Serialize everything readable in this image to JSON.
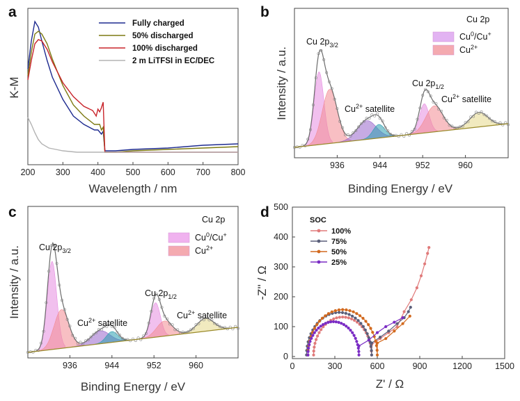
{
  "chart_data": [
    {
      "panel": "a",
      "type": "line",
      "xlabel": "Wavelength / nm",
      "ylabel": "K-M",
      "xlim": [
        200,
        800
      ],
      "xticks": [
        "200",
        "300",
        "400",
        "500",
        "600",
        "700",
        "800"
      ],
      "ylim": [
        0,
        1.0
      ],
      "series": [
        {
          "name": "Fully charged",
          "color": "#1d2a8f",
          "x": [
            200,
            210,
            220,
            230,
            240,
            255,
            270,
            300,
            330,
            360,
            390,
            400,
            410,
            415,
            420,
            450,
            500,
            600,
            700,
            800
          ],
          "y": [
            0.6,
            0.8,
            0.94,
            0.9,
            0.8,
            0.66,
            0.54,
            0.38,
            0.26,
            0.2,
            0.16,
            0.16,
            0.13,
            0.15,
            0.01,
            0.01,
            0.02,
            0.03,
            0.05,
            0.06
          ]
        },
        {
          "name": "50% discharged",
          "color": "#7d7a12",
          "x": [
            200,
            210,
            220,
            230,
            240,
            255,
            270,
            300,
            330,
            360,
            390,
            405,
            410,
            415,
            420,
            450,
            500,
            600,
            700,
            800
          ],
          "y": [
            0.55,
            0.72,
            0.85,
            0.87,
            0.85,
            0.78,
            0.67,
            0.48,
            0.34,
            0.26,
            0.2,
            0.2,
            0.16,
            0.18,
            0.0,
            0.0,
            0.01,
            0.02,
            0.03,
            0.04
          ]
        },
        {
          "name": "100% discharged",
          "color": "#c8232a",
          "x": [
            200,
            210,
            220,
            230,
            240,
            255,
            270,
            300,
            330,
            360,
            385,
            395,
            400,
            405,
            410,
            415,
            420,
            450,
            500,
            600,
            700,
            800
          ],
          "y": [
            0.52,
            0.66,
            0.78,
            0.81,
            0.8,
            0.74,
            0.65,
            0.5,
            0.4,
            0.33,
            0.3,
            0.26,
            0.31,
            0.29,
            0.32,
            0.36,
            0.0,
            0.0,
            0.0,
            0.0,
            0.0,
            0.0
          ]
        },
        {
          "name": "2 m LiTFSI in EC/DEC",
          "color": "#b3b3b3",
          "x": [
            200,
            210,
            220,
            230,
            240,
            260,
            280,
            300,
            340,
            400,
            500,
            600,
            700,
            800
          ],
          "y": [
            0.25,
            0.2,
            0.14,
            0.09,
            0.06,
            0.03,
            0.02,
            0.01,
            0.0,
            0.0,
            0.0,
            0.0,
            0.0,
            0.0
          ]
        }
      ]
    },
    {
      "panel": "b",
      "type": "line",
      "title": "Cu 2p",
      "xlabel": "Binding Energy / eV",
      "ylabel": "Intensity / a.u.",
      "xlim": [
        928,
        968
      ],
      "xticks": [
        "936",
        "944",
        "952",
        "960"
      ],
      "legend": [
        {
          "name": "Cu0/Cu+",
          "label_main": "Cu",
          "label_sup": "0",
          "label_mid": "/Cu",
          "label_sup2": "+",
          "color": "#e2b3f2"
        },
        {
          "name": "Cu2+",
          "label_main": "Cu",
          "label_sup": "2+",
          "color": "#f4aab0"
        }
      ],
      "annotations": {
        "p32_main": "Cu 2p",
        "p32_sub": "3/2",
        "p12_main": "Cu 2p",
        "p12_sub": "1/2",
        "sat_main": "Cu",
        "sat_sup": "2+",
        "sat_rest": " satellite"
      },
      "peaks": [
        {
          "name": "Cu0/Cu+ 2p3/2",
          "center": 932.6,
          "height": 0.7,
          "width": 0.9,
          "color": "#e58ce0"
        },
        {
          "name": "Cu2+ 2p3/2",
          "center": 934.6,
          "height": 0.52,
          "width": 1.4,
          "color": "#f28a92"
        },
        {
          "name": "satellite (violet)",
          "center": 941.5,
          "height": 0.18,
          "width": 1.8,
          "color": "#9966cc"
        },
        {
          "name": "satellite (teal)",
          "center": 943.8,
          "height": 0.13,
          "width": 1.1,
          "color": "#2a9fb0"
        },
        {
          "name": "Cu0/Cu+ 2p1/2",
          "center": 952.3,
          "height": 0.28,
          "width": 0.9,
          "color": "#e58ce0"
        },
        {
          "name": "Cu2+ 2p1/2",
          "center": 954.2,
          "height": 0.25,
          "width": 1.6,
          "color": "#f28a92"
        },
        {
          "name": "satellite 2p1/2",
          "center": 962.5,
          "height": 0.14,
          "width": 1.7,
          "color": "#e6d98a"
        }
      ]
    },
    {
      "panel": "c",
      "type": "line",
      "title": "Cu 2p",
      "xlabel": "Binding Energy / eV",
      "ylabel": "Intensity / a.u.",
      "xlim": [
        928,
        968
      ],
      "xticks": [
        "936",
        "944",
        "952",
        "960"
      ],
      "legend": [
        {
          "name": "Cu0/Cu+",
          "label_main": "Cu",
          "label_sup": "0",
          "label_mid": "/Cu",
          "label_sup2": "+",
          "color": "#f0b2ef"
        },
        {
          "name": "Cu2+",
          "label_main": "Cu",
          "label_sup": "2+",
          "color": "#f4aab0"
        }
      ],
      "annotations": {
        "p32_main": "Cu 2p",
        "p32_sub": "3/2",
        "p12_main": "Cu 2p",
        "p12_sub": "1/2",
        "sat_main": "Cu",
        "sat_sup": "2+",
        "sat_rest": " satellite"
      },
      "peaks": [
        {
          "name": "Cu0/Cu+ 2p3/2",
          "center": 932.6,
          "height": 0.82,
          "width": 0.9,
          "color": "#e58ce0"
        },
        {
          "name": "Cu2+ 2p3/2",
          "center": 934.4,
          "height": 0.36,
          "width": 1.4,
          "color": "#f28a92"
        },
        {
          "name": "satellite (violet)",
          "center": 941.8,
          "height": 0.12,
          "width": 1.8,
          "color": "#9966cc"
        },
        {
          "name": "satellite (teal)",
          "center": 944.0,
          "height": 0.1,
          "width": 1.1,
          "color": "#2a9fb0"
        },
        {
          "name": "Cu0/Cu+ 2p1/2",
          "center": 952.3,
          "height": 0.32,
          "width": 0.9,
          "color": "#e58ce0"
        },
        {
          "name": "Cu2+ 2p1/2",
          "center": 954.0,
          "height": 0.14,
          "width": 1.5,
          "color": "#f28a92"
        },
        {
          "name": "satellite 2p1/2",
          "center": 961.8,
          "height": 0.12,
          "width": 1.6,
          "color": "#e6d98a"
        }
      ]
    },
    {
      "panel": "d",
      "type": "scatter",
      "xlabel": "Z' / Ω",
      "ylabel": "-Z'' / Ω",
      "xlim": [
        0,
        1500
      ],
      "ylim": [
        0,
        500
      ],
      "xticks": [
        "0",
        "300",
        "600",
        "900",
        "1200",
        "1500"
      ],
      "yticks": [
        "0",
        "100",
        "200",
        "300",
        "400",
        "500"
      ],
      "legend_title": "SOC",
      "series": [
        {
          "name": "100%",
          "color": "#e07a7a",
          "r0": 150,
          "r1": 560,
          "tail": [
            [
              560,
              40
            ],
            [
              620,
              60
            ],
            [
              680,
              80
            ],
            [
              740,
              100
            ],
            [
              790,
              150
            ],
            [
              840,
              190
            ],
            [
              880,
              230
            ],
            [
              910,
              270
            ],
            [
              935,
              310
            ],
            [
              955,
              345
            ],
            [
              965,
              365
            ]
          ]
        },
        {
          "name": "75%",
          "color": "#5a5f7a",
          "r0": 100,
          "r1": 560,
          "tail": [
            [
              560,
              45
            ],
            [
              620,
              65
            ],
            [
              680,
              85
            ],
            [
              740,
              110
            ],
            [
              790,
              130
            ],
            [
              820,
              150
            ],
            [
              835,
              165
            ]
          ]
        },
        {
          "name": "50%",
          "color": "#d2691e",
          "r0": 110,
          "r1": 600,
          "tail": [
            [
              600,
              45
            ],
            [
              660,
              60
            ],
            [
              720,
              85
            ],
            [
              780,
              110
            ],
            [
              830,
              135
            ]
          ]
        },
        {
          "name": "25%",
          "color": "#7a2cc4",
          "r0": 110,
          "r1": 470,
          "tail": [
            [
              470,
              35
            ],
            [
              540,
              55
            ],
            [
              600,
              80
            ],
            [
              660,
              100
            ],
            [
              720,
              115
            ],
            [
              780,
              130
            ]
          ]
        }
      ]
    }
  ]
}
